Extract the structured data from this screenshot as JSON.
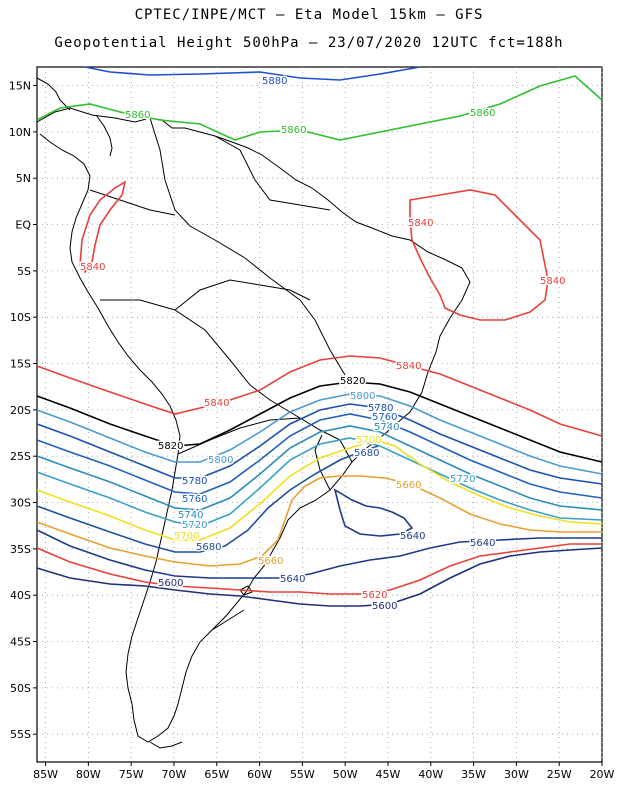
{
  "header": {
    "line1": "CPTEC/INPE/MCT –  Eta Model 15km – GFS",
    "line2": "Geopotential Height 500hPa – 23/07/2020 12UTC fct=188h"
  },
  "axes": {
    "lat_labels": [
      "15N",
      "10N",
      "5N",
      "EQ",
      "5S",
      "10S",
      "15S",
      "20S",
      "25S",
      "30S",
      "35S",
      "40S",
      "45S",
      "50S",
      "55S"
    ],
    "lon_labels": [
      "85W",
      "80W",
      "75W",
      "70W",
      "65W",
      "60W",
      "55W",
      "50W",
      "45W",
      "40W",
      "35W",
      "30W",
      "25W",
      "20W"
    ],
    "lon_range": [
      -86,
      -20
    ],
    "lat_range": [
      -58,
      17
    ],
    "grid": "dotted"
  },
  "colors": {
    "c5600": "#1f2f7a",
    "c5620": "#e8403a",
    "c5640": "#1f3a8a",
    "c5660": "#e8a030",
    "c5680": "#1f4f9a",
    "c5700": "#f0e020",
    "c5720": "#3aa0c8",
    "c5740": "#2a8cb8",
    "c5760": "#2060c0",
    "c5780": "#1a50b0",
    "c5800": "#4a9ad0",
    "c5820": "#000000",
    "c5840": "#e8403a",
    "c5860": "#30c030",
    "c5880": "#2050d0"
  },
  "contours": {
    "l5880": "5880",
    "l5860": "5860",
    "l5840": "5840",
    "l5820": "5820",
    "l5800": "5800",
    "l5780": "5780",
    "l5760": "5760",
    "l5740": "5740",
    "l5720": "5720",
    "l5700": "5700",
    "l5680": "5680",
    "l5660": "5660",
    "l5640": "5640",
    "l5620": "5620",
    "l5600": "5600"
  }
}
